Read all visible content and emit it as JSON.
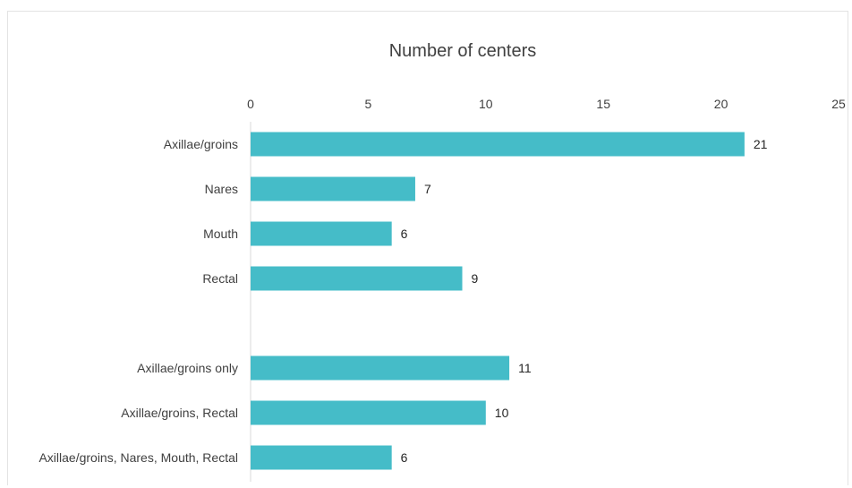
{
  "chart_data": {
    "type": "bar",
    "orientation": "horizontal",
    "title": "Number of centers",
    "xlabel": "",
    "ylabel": "",
    "xlim": [
      0,
      25
    ],
    "ticks": [
      0,
      5,
      10,
      15,
      20,
      25
    ],
    "tick_labels": [
      "0",
      "5",
      "10",
      "15",
      "20",
      "25"
    ],
    "axis_position": "top",
    "grid": false,
    "legend": "none",
    "bar_color": "#45bcc8",
    "categories": [
      "Axillae/groins",
      "Nares",
      "Mouth",
      "Rectal",
      "",
      "Axillae/groins only",
      "Axillae/groins, Rectal",
      "Axillae/groins, Nares, Mouth, Rectal"
    ],
    "values": [
      21,
      7,
      6,
      9,
      null,
      11,
      10,
      6
    ],
    "data_labels": [
      "21",
      "7",
      "6",
      "9",
      "",
      "11",
      "10",
      "6"
    ]
  }
}
